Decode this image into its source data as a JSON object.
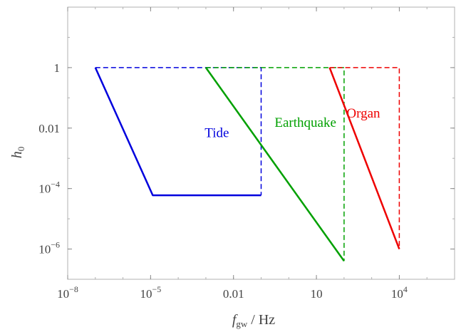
{
  "chart_data": {
    "type": "line",
    "xscale": "log",
    "yscale": "log",
    "xlim": [
      1e-08,
      1000000.0
    ],
    "ylim": [
      1e-07,
      100
    ],
    "x_ticks": [
      {
        "value": 1e-08,
        "base": "10",
        "exp": "−8"
      },
      {
        "value": 1e-05,
        "base": "10",
        "exp": "−5"
      },
      {
        "value": 0.01,
        "text": "0.01"
      },
      {
        "value": 10,
        "text": "10"
      },
      {
        "value": 10000,
        "base": "10",
        "exp": "4"
      }
    ],
    "y_ticks": [
      {
        "value": 1,
        "text": "1"
      },
      {
        "value": 0.01,
        "text": "0.01"
      },
      {
        "value": 0.0001,
        "base": "10",
        "exp": "−4"
      },
      {
        "value": 1e-06,
        "base": "10",
        "exp": "−6"
      }
    ],
    "xlabel": {
      "main": "f",
      "sub": "gw",
      "unit": " / Hz"
    },
    "ylabel": {
      "main": "h",
      "sub": "0"
    },
    "grid": false,
    "series": [
      {
        "name": "Tide",
        "color": "#0000dd",
        "solid": [
          [
            1e-07,
            1
          ],
          [
            1.2e-05,
            6e-05
          ],
          [
            0.1,
            6e-05
          ]
        ],
        "dashed": [
          [
            1e-07,
            1
          ],
          [
            0.1,
            1
          ],
          [
            0.1,
            6e-05
          ]
        ],
        "label_pos": [
          0.0025,
          0.005
        ]
      },
      {
        "name": "Earthquake",
        "color": "#00a000",
        "solid": [
          [
            0.001,
            1
          ],
          [
            100,
            4e-07
          ]
        ],
        "dashed": [
          [
            0.001,
            1
          ],
          [
            100,
            1
          ],
          [
            100,
            4e-07
          ]
        ],
        "label_pos": [
          4,
          0.011
        ]
      },
      {
        "name": "Organ",
        "color": "#ee0000",
        "solid": [
          [
            30,
            1
          ],
          [
            10000,
            1e-06
          ]
        ],
        "dashed": [
          [
            30,
            1
          ],
          [
            10000,
            1
          ],
          [
            10000,
            1e-06
          ]
        ],
        "label_pos": [
          500,
          0.022
        ]
      }
    ]
  }
}
